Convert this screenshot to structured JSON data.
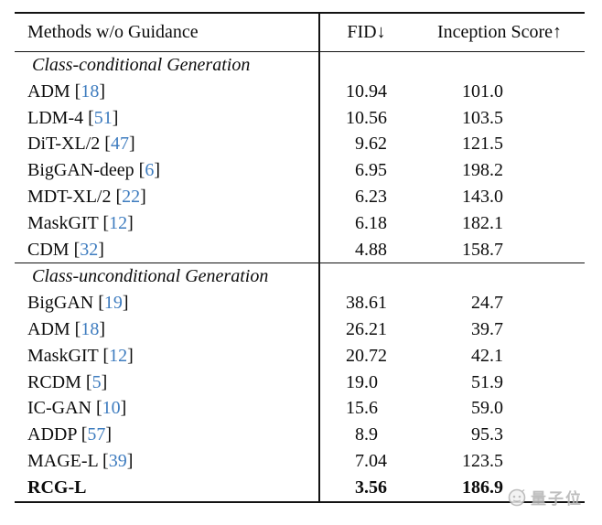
{
  "table": {
    "header": {
      "methods_label": "Methods w/o Guidance",
      "fid_label": "FID↓",
      "inception_label": "Inception Score↑"
    },
    "citation_brackets": [
      "[",
      "]"
    ],
    "colors": {
      "rule": "#131313",
      "text": "#0c0c0c",
      "citation_blue": "#3e7cbf"
    },
    "sections": [
      {
        "title": "Class-conditional Generation",
        "rows": [
          {
            "method": "ADM",
            "cite": "18",
            "fid": "10.94",
            "is": "101.0"
          },
          {
            "method": "LDM-4",
            "cite": "51",
            "fid": "10.56",
            "is": "103.5"
          },
          {
            "method": "DiT-XL/2",
            "cite": "47",
            "fid": "9.62",
            "is": "121.5"
          },
          {
            "method": "BigGAN-deep",
            "cite": "6",
            "fid": "6.95",
            "is": "198.2"
          },
          {
            "method": "MDT-XL/2",
            "cite": "22",
            "fid": "6.23",
            "is": "143.0"
          },
          {
            "method": "MaskGIT",
            "cite": "12",
            "fid": "6.18",
            "is": "182.1"
          },
          {
            "method": "CDM",
            "cite": "32",
            "fid": "4.88",
            "is": "158.7"
          }
        ]
      },
      {
        "title": "Class-unconditional Generation",
        "rows": [
          {
            "method": "BigGAN",
            "cite": "19",
            "fid": "38.61",
            "is": "24.7"
          },
          {
            "method": "ADM",
            "cite": "18",
            "fid": "26.21",
            "is": "39.7"
          },
          {
            "method": "MaskGIT",
            "cite": "12",
            "fid": "20.72",
            "is": "42.1"
          },
          {
            "method": "RCDM",
            "cite": "5",
            "fid": "19.0",
            "is": "51.9"
          },
          {
            "method": "IC-GAN",
            "cite": "10",
            "fid": "15.6",
            "is": "59.0"
          },
          {
            "method": "ADDP",
            "cite": "57",
            "fid": "8.9",
            "is": "95.3"
          },
          {
            "method": "MAGE-L",
            "cite": "39",
            "fid": "7.04",
            "is": "123.5"
          },
          {
            "method": "RCG-L",
            "cite": null,
            "fid": "3.56",
            "is": "186.9",
            "bold": true
          }
        ]
      }
    ]
  },
  "watermark": {
    "text": "量子位",
    "logo": "qbitai-logo-icon",
    "color": "#b3b3b3"
  }
}
